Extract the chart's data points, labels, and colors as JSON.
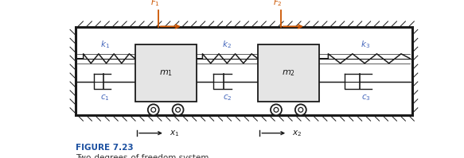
{
  "fig_width": 5.83,
  "fig_height": 1.99,
  "dpi": 100,
  "bg_color": "#ffffff",
  "line_color": "#1a1a1a",
  "orange_color": "#cc5500",
  "blue_label_color": "#4466bb",
  "figure_label": "FIGURE 7.23",
  "figure_caption": "Two-degrees-of-freedom system.",
  "label_color_figure": "#1a4fa0",
  "caption_color": "#333333",
  "figure_label_fontsize": 7.5,
  "caption_fontsize": 7.5,
  "label_fontsize": 7.5
}
